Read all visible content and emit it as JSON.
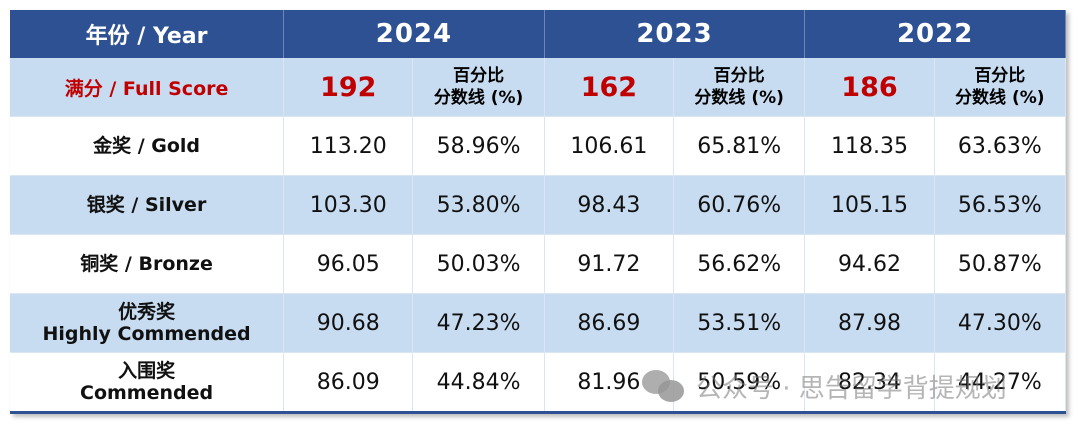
{
  "header": {
    "year_label": "年份 / Year",
    "years": [
      "2024",
      "2023",
      "2022"
    ]
  },
  "full_score": {
    "label": "满分 / Full Score",
    "values": [
      "192",
      "162",
      "186"
    ],
    "pct_header_line1": "百分比",
    "pct_header_line2": "分数线 (%)"
  },
  "rows": [
    {
      "award_line1": "金奖 / Gold",
      "award_line2": "",
      "cells": [
        "113.20",
        "58.96%",
        "106.61",
        "65.81%",
        "118.35",
        "63.63%"
      ]
    },
    {
      "award_line1": "银奖 / Silver",
      "award_line2": "",
      "cells": [
        "103.30",
        "53.80%",
        "98.43",
        "60.76%",
        "105.15",
        "56.53%"
      ]
    },
    {
      "award_line1": "铜奖 / Bronze",
      "award_line2": "",
      "cells": [
        "96.05",
        "50.03%",
        "91.72",
        "56.62%",
        "94.62",
        "50.87%"
      ]
    },
    {
      "award_line1": "优秀奖",
      "award_line2": "Highly Commended",
      "cells": [
        "90.68",
        "47.23%",
        "86.69",
        "53.51%",
        "87.98",
        "47.30%"
      ]
    },
    {
      "award_line1": "入围奖",
      "award_line2": "Commended",
      "cells": [
        "86.09",
        "44.84%",
        "81.96",
        "50.59%",
        "82.34",
        "44.27%"
      ]
    }
  ],
  "colors": {
    "header_bg": "#2e5194",
    "alt_row_bg": "#c8dcf1",
    "accent_red": "#c00000"
  },
  "watermark": {
    "icon": "wechat-icon",
    "text": "公众号 · 思告留学背提规划"
  }
}
